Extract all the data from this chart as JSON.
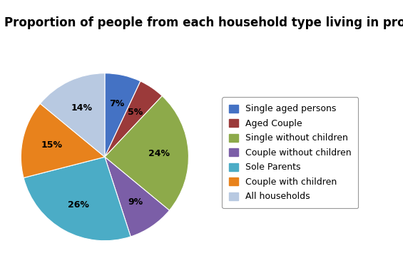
{
  "title": "Proportion of people from each household type living in proverty",
  "labels": [
    "Single aged persons",
    "Aged Couple",
    "Single without children",
    "Couple without children",
    "Sole Parents",
    "Couple with children",
    "All households"
  ],
  "values": [
    7,
    5,
    24,
    9,
    26,
    15,
    14
  ],
  "colors": [
    "#4472C4",
    "#9B3A3A",
    "#8DAA4A",
    "#7B5EA7",
    "#4BACC6",
    "#E8821C",
    "#B8C9E1"
  ],
  "title_fontsize": 12,
  "label_fontsize": 9,
  "legend_fontsize": 9,
  "background_color": "#FFFFFF",
  "startangle": 90
}
